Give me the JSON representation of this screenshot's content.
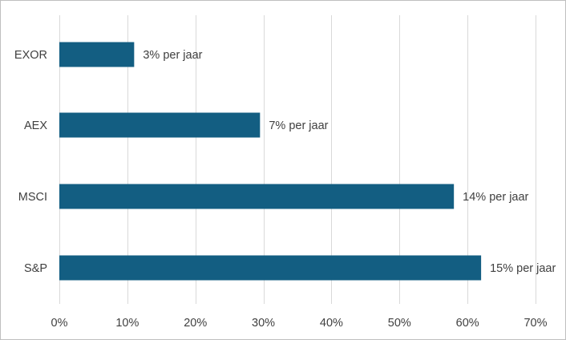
{
  "chart_data": {
    "type": "bar",
    "orientation": "horizontal",
    "categories": [
      "EXOR",
      "AEX",
      "MSCI",
      "S&P"
    ],
    "values": [
      11,
      29.5,
      58,
      62
    ],
    "data_labels": [
      "3% per jaar",
      "7% per jaar",
      "14% per jaar",
      "15% per jaar"
    ],
    "xlim": [
      0,
      70
    ],
    "xticks": [
      0,
      10,
      20,
      30,
      40,
      50,
      60,
      70
    ],
    "xtick_labels": [
      "0%",
      "10%",
      "20%",
      "30%",
      "40%",
      "50%",
      "60%",
      "70%"
    ],
    "grid": "vertical",
    "title": "",
    "xlabel": "",
    "ylabel": "",
    "legend": "none",
    "bar_color": "#135e82",
    "grid_color": "#d9d9d9",
    "text_color": "#404040"
  }
}
